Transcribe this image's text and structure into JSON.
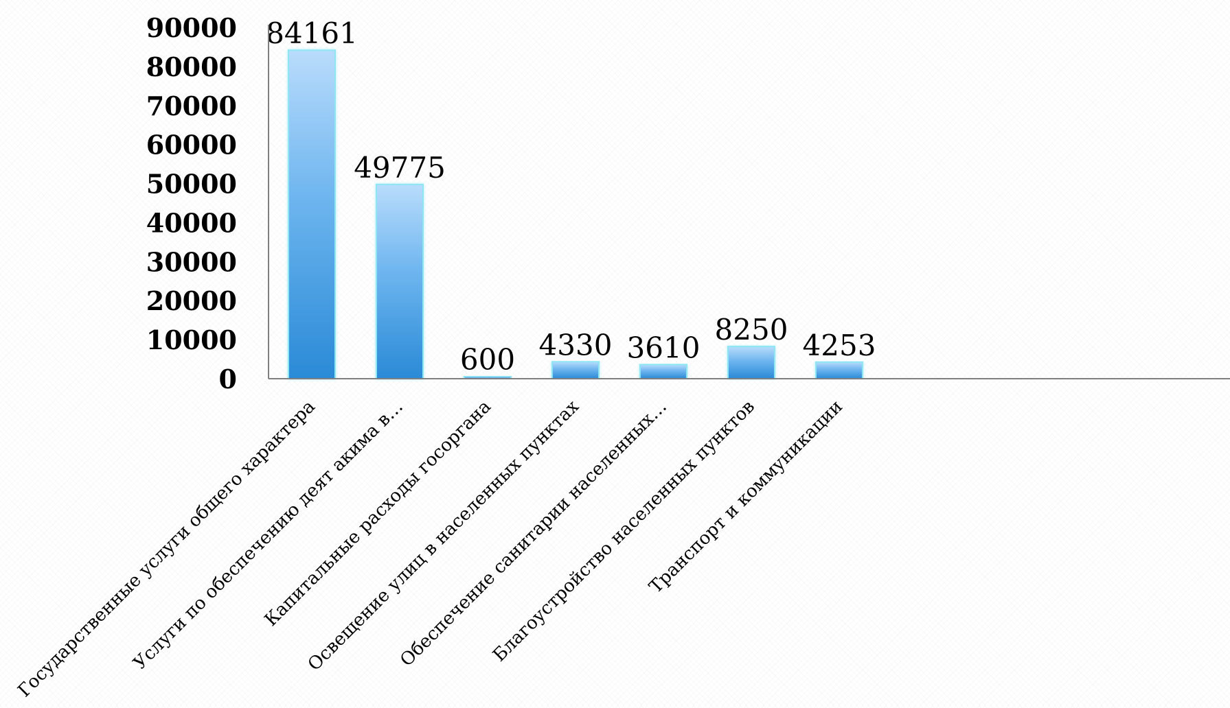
{
  "chart_data": {
    "type": "bar",
    "title": "",
    "xlabel": "",
    "ylabel": "",
    "ylim": [
      0,
      90000
    ],
    "yticks": [
      0,
      10000,
      20000,
      30000,
      40000,
      50000,
      60000,
      70000,
      80000,
      90000
    ],
    "grid": false,
    "legend": "none",
    "categories": [
      "Государственные услуги общего характера",
      "Услуги по обеспечению деят акима в…",
      "Капитальные расходы госоргана",
      "Освещение улиц в населенных пунктах",
      "Обеспечение санитарии населенных…",
      "Благоустройство населенных пунктов",
      "Транспорт и коммуникации"
    ],
    "values": [
      84161,
      49775,
      600,
      4330,
      3610,
      8250,
      4253
    ],
    "colors": {
      "bar_top": "#b9dcfb",
      "bar_bottom": "#2a8ad6",
      "bar_edge": "#8ee6f5",
      "axis": "#7f7f7f"
    }
  }
}
